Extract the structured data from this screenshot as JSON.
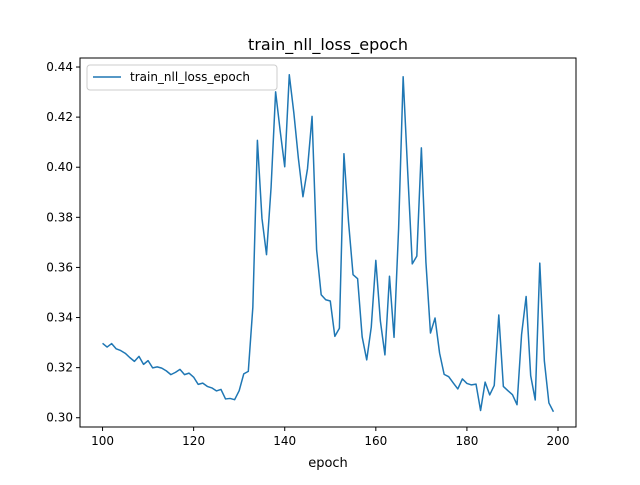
{
  "chart_data": {
    "type": "line",
    "title": "train_nll_loss_epoch",
    "xlabel": "epoch",
    "ylabel": "",
    "xlim": [
      95.05,
      203.95
    ],
    "ylim": [
      0.2963,
      0.4436
    ],
    "xticks": [
      100,
      120,
      140,
      160,
      180,
      200
    ],
    "yticks": [
      0.3,
      0.32,
      0.34,
      0.36,
      0.38,
      0.4,
      0.42,
      0.44
    ],
    "grid": false,
    "legend_position": "top-left",
    "series": [
      {
        "name": "train_nll_loss_epoch",
        "color": "#1f77b4",
        "x": [
          100,
          101,
          102,
          103,
          104,
          105,
          106,
          107,
          108,
          109,
          110,
          111,
          112,
          113,
          114,
          115,
          116,
          117,
          118,
          119,
          120,
          121,
          122,
          123,
          124,
          125,
          126,
          127,
          128,
          129,
          130,
          131,
          132,
          133,
          134,
          135,
          136,
          137,
          138,
          139,
          140,
          141,
          142,
          143,
          144,
          145,
          146,
          147,
          148,
          149,
          150,
          151,
          152,
          153,
          154,
          155,
          156,
          157,
          158,
          159,
          160,
          161,
          162,
          163,
          164,
          165,
          166,
          167,
          168,
          169,
          170,
          171,
          172,
          173,
          174,
          175,
          176,
          177,
          178,
          179,
          180,
          181,
          182,
          183,
          184,
          185,
          186,
          187,
          188,
          189,
          190,
          191,
          192,
          193,
          194,
          195,
          196,
          197,
          198,
          199
        ],
        "y": [
          0.3297,
          0.3282,
          0.3296,
          0.3275,
          0.3268,
          0.3257,
          0.324,
          0.3225,
          0.3245,
          0.3213,
          0.3228,
          0.3199,
          0.3203,
          0.3198,
          0.3187,
          0.3172,
          0.3181,
          0.3193,
          0.3172,
          0.3178,
          0.3162,
          0.3133,
          0.3138,
          0.3125,
          0.3119,
          0.3107,
          0.3113,
          0.3075,
          0.3077,
          0.3072,
          0.3108,
          0.3175,
          0.3185,
          0.3442,
          0.4107,
          0.3796,
          0.3651,
          0.3919,
          0.4301,
          0.4145,
          0.4002,
          0.4369,
          0.4217,
          0.4035,
          0.3882,
          0.3994,
          0.4203,
          0.3671,
          0.3491,
          0.3471,
          0.3466,
          0.3325,
          0.3357,
          0.4054,
          0.3783,
          0.3571,
          0.3555,
          0.3323,
          0.3231,
          0.3362,
          0.3628,
          0.3386,
          0.3251,
          0.3565,
          0.3321,
          0.3755,
          0.4361,
          0.3981,
          0.3614,
          0.3645,
          0.4077,
          0.3621,
          0.3338,
          0.3398,
          0.3258,
          0.3173,
          0.3164,
          0.3139,
          0.3115,
          0.3155,
          0.3137,
          0.3131,
          0.3134,
          0.3029,
          0.3142,
          0.3091,
          0.3129,
          0.341,
          0.3125,
          0.3108,
          0.3092,
          0.3052,
          0.3332,
          0.3484,
          0.3168,
          0.3071,
          0.3617,
          0.3227,
          0.3059,
          0.3024
        ]
      }
    ]
  }
}
